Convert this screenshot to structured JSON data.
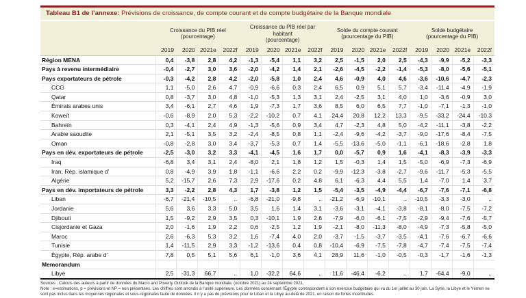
{
  "title": {
    "prefix": "Tableau B1 de l’annexe:",
    "text": "Prévisions de croissance, de compte courant et de compte budgétaire de la Banque mondiale"
  },
  "colors": {
    "accent_maroon": "#8E2020",
    "header_cream": "#F2EFD8"
  },
  "table": {
    "groups": [
      {
        "label": "Croissance du PIB réel",
        "sub": "(pourcentage)"
      },
      {
        "label": "Croissance du PIB réel par habitant",
        "sub": "(pourcentage)"
      },
      {
        "label": "Solde du compte courant",
        "sub": "(pourcentage du PIB)"
      },
      {
        "label": "Solde budgétaire",
        "sub": "(pourcentage du PIB)"
      }
    ],
    "years": [
      "2019",
      "2020",
      "2021e",
      "2022f"
    ],
    "rows": [
      {
        "label": "Région MENA",
        "bold": true,
        "indent": 0,
        "values": [
          "0,4",
          "-3,8",
          "2,8",
          "4,2",
          "-1,3",
          "-5,4",
          "1,1",
          "3,2",
          "2,5",
          "-1,5",
          "2,0",
          "2,5",
          "-4,3",
          "-9,9",
          "-5,2",
          "-3,3"
        ]
      },
      {
        "label": "Pays à revenu intermédiaire",
        "bold": true,
        "indent": 0,
        "values": [
          "-0,4",
          "-2,7",
          "3,0",
          "3,6",
          "-2,0",
          "-4,2",
          "1,4",
          "2,1",
          "-2,6",
          "-4,5",
          "-2,2",
          "-1,4",
          "-5,3",
          "-8,0",
          "-5,6",
          "-5,1"
        ]
      },
      {
        "label": "Pays exportateurs de pétrole",
        "bold": true,
        "indent": 0,
        "values": [
          "-0,3",
          "-4,2",
          "2,8",
          "4,2",
          "-2,0",
          "-5,8",
          "1,0",
          "2,4",
          "4,6",
          "-0,9",
          "4,0",
          "4,6",
          "-3,6",
          "-10,6",
          "-4,7",
          "-2,3"
        ]
      },
      {
        "label": "CCG",
        "bold": false,
        "indent": 1,
        "values": [
          "1,1",
          "-5,0",
          "2,6",
          "4,7",
          "-0,9",
          "-6,6",
          "0,3",
          "2,4",
          "6,5",
          "0,9",
          "5,1",
          "5,7",
          "-3,4",
          "-11,4",
          "-4,9",
          "-1,9"
        ]
      },
      {
        "label": "Qatar",
        "bold": false,
        "indent": 1,
        "values": [
          "0,8",
          "-3,7",
          "3,0",
          "4,8",
          "-1,0",
          "-5,3",
          "1,3",
          "3,1",
          "2,4",
          "-2,5",
          "3,1",
          "4,0",
          "1,0",
          "-3,6",
          "-0,9",
          "3,0"
        ]
      },
      {
        "label": "Émirats arabes unis",
        "bold": false,
        "indent": 1,
        "values": [
          "3,4",
          "-6,1",
          "2,7",
          "4,6",
          "1,9",
          "-7,3",
          "1,7",
          "3,6",
          "8,5",
          "6,0",
          "6,5",
          "7,7",
          "-1,0",
          "-7,1",
          "-1,3",
          "-1,0"
        ]
      },
      {
        "label": "Koweït",
        "bold": false,
        "indent": 1,
        "values": [
          "-0,6",
          "-8,9",
          "2,0",
          "5,3",
          "-2,2",
          "-10,2",
          "0,7",
          "4,1",
          "24,4",
          "20,8",
          "12,2",
          "13,3",
          "-9,5",
          "-33,2",
          "-24,4",
          "-10,3"
        ]
      },
      {
        "label": "Bahreïn",
        "bold": false,
        "indent": 1,
        "values": [
          "0,3",
          "-4,1",
          "2,4",
          "4,9",
          "-1,3",
          "-5,6",
          "0,9",
          "3,4",
          "4,7",
          "-2,3",
          "4,8",
          "5,0",
          "-4,2",
          "-11,1",
          "-3,8",
          "-2,2"
        ]
      },
      {
        "label": "Arabie saoudite",
        "bold": false,
        "indent": 1,
        "values": [
          "2,1",
          "-5,1",
          "3,5",
          "3,2",
          "-2,4",
          "-8,5",
          "0,8",
          "1,1",
          "-2,4",
          "-9,6",
          "-4,2",
          "-3,7",
          "-9,0",
          "-17,6",
          "-8,4",
          "-7,5"
        ]
      },
      {
        "label": "Oman",
        "bold": false,
        "indent": 1,
        "values": [
          "-0,8",
          "-2,8",
          "3,0",
          "3,4",
          "-3,7",
          "-5,3",
          "0,7",
          "1,4",
          "-5,5",
          "-13,6",
          "-5,0",
          "-1,1",
          "-6,1",
          "-18,6",
          "-2,8",
          "1,8"
        ]
      },
      {
        "label": "Pays en dév. exportateurs de pétrole",
        "bold": true,
        "indent": 0,
        "values": [
          "-2,5",
          "-3,0",
          "3,2",
          "3,3",
          "-4,1",
          "-4,5",
          "1,6",
          "1,7",
          "0,0",
          "-5,7",
          "0,9",
          "1,6",
          "-4,1",
          "-8,3",
          "-3,9",
          "-3,3"
        ]
      },
      {
        "label": "Iraq",
        "bold": false,
        "indent": 1,
        "values": [
          "-6,8",
          "3,4",
          "3,1",
          "2,4",
          "-8,0",
          "2,1",
          "1,8",
          "1,2",
          "1,5",
          "-0,3",
          "1,4",
          "1,5",
          "-5,0",
          "-6,9",
          "-7,3",
          "-6,9"
        ]
      },
      {
        "label": "Iran, Rép. islamique d’",
        "bold": false,
        "indent": 1,
        "values": [
          "0,8",
          "-4,9",
          "3,9",
          "1,8",
          "-1,1",
          "-6,6",
          "2,2",
          "0,2",
          "-9,9",
          "-12,3",
          "-3,8",
          "-2,7",
          "-9,6",
          "-11,7",
          "-5,3",
          "-5,5"
        ]
      },
      {
        "label": "Algérie",
        "bold": false,
        "indent": 1,
        "values": [
          "5,2",
          "-15,7",
          "2,6",
          "7,3",
          "2,9",
          "-17,6",
          "0,2",
          "4,8",
          "6,1",
          "-6,3",
          "4,4",
          "5,5",
          "1,4",
          "-7,0",
          "1,4",
          "3,7"
        ]
      },
      {
        "label": "Pays en dév. importateurs de pétrole",
        "bold": true,
        "indent": 0,
        "values": [
          "3,3",
          "-2,2",
          "2,8",
          "4,3",
          "1,7",
          "-3,8",
          "1,2",
          "1,5",
          "-5,4",
          "-3,5",
          "-4,9",
          "-4,4",
          "-6,7",
          "-7,6",
          "-7,1",
          "-6,8"
        ]
      },
      {
        "label": "Liban",
        "bold": false,
        "indent": 1,
        "values": [
          "-6,7",
          "-21,4",
          "-10,5",
          "..",
          "-6,8",
          "-21,0",
          "-9,8",
          "..",
          "-21,2",
          "-6,9",
          "-10,1",
          "..",
          "-10,5",
          "-3,3",
          "-3,0",
          ".."
        ]
      },
      {
        "label": "Jordanie",
        "bold": false,
        "indent": 1,
        "values": [
          "5,6",
          "3,6",
          "3,3",
          "5,0",
          "3,5",
          "1,6",
          "1,4",
          "3,1",
          "-3,6",
          "-3,1",
          "-4,1",
          "-3,8",
          "-8,1",
          "-8,0",
          "-7,5",
          "-7,2"
        ]
      },
      {
        "label": "Djibouti",
        "bold": false,
        "indent": 1,
        "values": [
          "1,5",
          "-9,2",
          "2,9",
          "3,5",
          "0,3",
          "-10,1",
          "1,9",
          "2,6",
          "-7,9",
          "-6,0",
          "-6,1",
          "-7,5",
          "-2,9",
          "-9,4",
          "-7,6",
          "-5,7"
        ]
      },
      {
        "label": "Cisjordanie et Gaza",
        "bold": false,
        "indent": 1,
        "values": [
          "2,0",
          "-1,6",
          "1,9",
          "2,2",
          "0,6",
          "-2,5",
          "1,2",
          "1,9",
          "-2,1",
          "-8,0",
          "-11,3",
          "-8,0",
          "-4,9",
          "-7,3",
          "-5,8",
          "-5,0"
        ]
      },
      {
        "label": "Maroc",
        "bold": false,
        "indent": 1,
        "values": [
          "2,6",
          "-6,3",
          "5,3",
          "3,2",
          "1,6",
          "-7,4",
          "4,0",
          "2,0",
          "-3,7",
          "-1,5",
          "-3,7",
          "-3,5",
          "-4,1",
          "-7,6",
          "-6,7",
          "-6,6"
        ]
      },
      {
        "label": "Tunisie",
        "bold": false,
        "indent": 1,
        "values": [
          "1,4",
          "-11,5",
          "2,9",
          "3,3",
          "-1,2",
          "-13,6",
          "0,4",
          "0,8",
          "-10,4",
          "-6,9",
          "-7,5",
          "-7,8",
          "-4,7",
          "-7,4",
          "-7,5",
          "-7,4"
        ]
      },
      {
        "label": "Égypte, Rép. arabe d’",
        "bold": false,
        "indent": 1,
        "values": [
          "7,8",
          "0,5",
          "5,1",
          "5,6",
          "6,1",
          "-1,0",
          "3,6",
          "4,1",
          "28,9",
          "11,6",
          "-1,0",
          "-0,5",
          "-0,3",
          "-1,7",
          "-1,6",
          "-1,3"
        ]
      },
      {
        "label": "Memorandum",
        "bold": true,
        "indent": 0,
        "values": [
          "",
          "",
          "",
          "",
          "",
          "",
          "",
          "",
          "",
          "",
          "",
          "",
          "",
          "",
          "",
          ""
        ]
      },
      {
        "label": "Libye",
        "bold": false,
        "indent": 1,
        "values": [
          "2,5",
          "-31,3",
          "66,7",
          "..",
          "1,0",
          "-32,2",
          "64,6",
          "..",
          "11,6",
          "-46,4",
          "-6,2",
          "..",
          "1,7",
          "-64,4",
          "-9,0",
          ".."
        ]
      }
    ]
  },
  "footnotes": {
    "sources": "Sources : Calculs des auteurs à partir de données du Macro and Poverty Outlook de la Banque mondiale, (octobre 2021) au 24 septembre 2021.",
    "note": "Note : e=estimations, p = prévisions et NP = non présentées. Les chiffres sont arrondis à l’unité supérieure. Les données concernant l’Égypte correspondent à son exercice budgétaire qui va du 1er juillet au 30 juin. La Syrie, la Libye et le Yémen ne sont pas inclus dans les moyennes régionales et sous-régionales faute de données. Il n’y a pas de prévisions pour le Liban et la Libye au-delà de 2021, en raison de fortes incertitudes."
  }
}
